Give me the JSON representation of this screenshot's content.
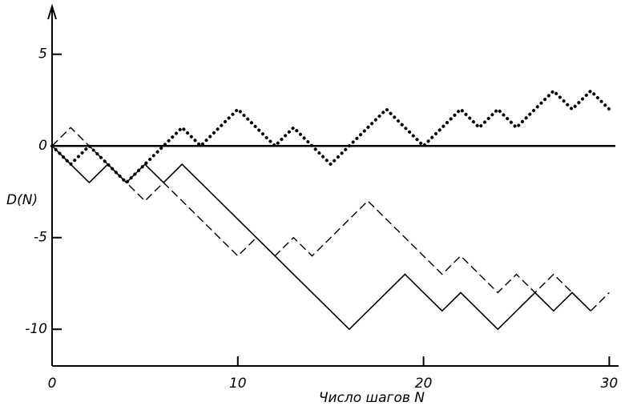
{
  "chart_data": {
    "type": "line",
    "x_label": "Число шагов N",
    "y_label": "D(N)",
    "x": [
      0,
      1,
      2,
      3,
      4,
      5,
      6,
      7,
      8,
      9,
      10,
      11,
      12,
      13,
      14,
      15,
      16,
      17,
      18,
      19,
      20,
      21,
      22,
      23,
      24,
      25,
      26,
      27,
      28,
      29,
      30
    ],
    "series": [
      {
        "color": "#000000",
        "style": "solid",
        "values": [
          0,
          -1,
          -2,
          -1,
          -2,
          -1,
          -2,
          -1,
          -2,
          -3,
          -4,
          -5,
          -6,
          -7,
          -8,
          -9,
          -10,
          -9,
          -8,
          -7,
          -8,
          -9,
          -8,
          -9,
          -10,
          -9,
          -8,
          -9,
          -8,
          -9,
          null
        ]
      },
      {
        "color": "#000000",
        "style": "dashed",
        "values": [
          0,
          1,
          0,
          -1,
          -2,
          -3,
          -2,
          -3,
          -4,
          -5,
          -6,
          -5,
          -6,
          -5,
          -6,
          -5,
          -4,
          -3,
          -4,
          -5,
          -6,
          -7,
          -6,
          -7,
          -8,
          -7,
          -8,
          -7,
          -8,
          -9,
          -8
        ]
      },
      {
        "color": "#000000",
        "style": "dotted",
        "values": [
          0,
          -1,
          0,
          -1,
          -2,
          -1,
          0,
          1,
          0,
          1,
          2,
          1,
          0,
          1,
          0,
          -1,
          0,
          1,
          2,
          1,
          0,
          1,
          2,
          1,
          2,
          1,
          2,
          3,
          2,
          3,
          2
        ]
      }
    ],
    "xlim": [
      0,
      30.5
    ],
    "ylim": [
      -12,
      7.5
    ],
    "xticks": [
      0,
      10,
      20,
      30
    ],
    "yticks": [
      5,
      0,
      -5,
      -10
    ],
    "zero_line": true
  }
}
